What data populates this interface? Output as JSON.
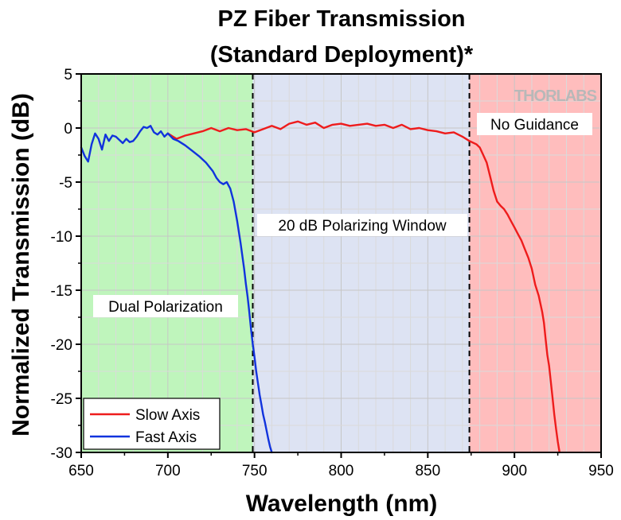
{
  "chart_data": {
    "type": "line",
    "title": [
      "PZ Fiber Transmission",
      "(Standard Deployment)*"
    ],
    "xlabel": "Wavelength (nm)",
    "ylabel": "Normalized Transmission (dB)",
    "xlim": [
      650,
      950
    ],
    "ylim": [
      -30,
      5
    ],
    "xticks": [
      650,
      700,
      750,
      800,
      850,
      900,
      950
    ],
    "yticks": [
      5,
      0,
      -5,
      -10,
      -15,
      -20,
      -25,
      -30
    ],
    "grid": true,
    "legend_position": "bottom-left",
    "regions": [
      {
        "label": "Dual Polarization",
        "x_start": 650,
        "x_end": 749,
        "color": "#bff5bc"
      },
      {
        "label": "20 dB Polarizing Window",
        "x_start": 749,
        "x_end": 874,
        "color": "#dde3f3"
      },
      {
        "label": "No Guidance",
        "x_start": 874,
        "x_end": 950,
        "color": "#ffbdbd"
      }
    ],
    "boundaries": [
      749,
      874
    ],
    "logo": "THORLABS",
    "series": [
      {
        "name": "Slow Axis",
        "color": "#ee1c1c",
        "x": [
          700,
          705,
          710,
          715,
          720,
          725,
          730,
          735,
          740,
          745,
          750,
          755,
          760,
          765,
          770,
          775,
          780,
          785,
          790,
          795,
          800,
          805,
          810,
          815,
          820,
          825,
          830,
          835,
          840,
          845,
          850,
          855,
          860,
          865,
          870,
          874,
          878,
          880,
          882,
          884,
          886,
          888,
          890,
          892,
          894,
          896,
          898,
          900,
          902,
          904,
          906,
          908,
          910,
          912,
          914,
          916,
          917,
          918,
          919,
          920,
          921,
          922,
          923,
          924,
          925,
          926
        ],
        "y": [
          -0.5,
          -1.0,
          -0.7,
          -0.5,
          -0.3,
          0.0,
          -0.3,
          0.0,
          -0.2,
          -0.1,
          -0.4,
          -0.1,
          0.2,
          -0.1,
          0.4,
          0.6,
          0.3,
          0.5,
          0.0,
          0.3,
          0.4,
          0.2,
          0.3,
          0.4,
          0.2,
          0.3,
          0.0,
          0.3,
          -0.1,
          0.0,
          -0.2,
          -0.3,
          -0.5,
          -0.4,
          -0.8,
          -1.2,
          -1.5,
          -1.8,
          -2.5,
          -3.2,
          -4.5,
          -5.8,
          -6.8,
          -7.2,
          -7.5,
          -8.0,
          -8.6,
          -9.2,
          -9.8,
          -10.4,
          -11.2,
          -12.0,
          -13.0,
          -14.5,
          -15.5,
          -17.0,
          -18.0,
          -19.5,
          -21.0,
          -22.0,
          -23.5,
          -25.0,
          -26.5,
          -27.8,
          -29.0,
          -30.0
        ]
      },
      {
        "name": "Fast Axis",
        "color": "#1133dd",
        "x": [
          650,
          652,
          654,
          656,
          658,
          660,
          662,
          664,
          666,
          668,
          670,
          672,
          674,
          676,
          678,
          680,
          682,
          684,
          686,
          688,
          690,
          692,
          694,
          696,
          698,
          700,
          703,
          706,
          710,
          714,
          718,
          722,
          726,
          728,
          730,
          732,
          734,
          736,
          738,
          740,
          742,
          744,
          745,
          746,
          747,
          748,
          749,
          750,
          751,
          752,
          753,
          754,
          755,
          756,
          757,
          758,
          759,
          760
        ],
        "y": [
          -1.8,
          -2.6,
          -3.1,
          -1.5,
          -0.5,
          -1.0,
          -2.0,
          -0.6,
          -1.2,
          -0.7,
          -0.8,
          -1.1,
          -1.4,
          -1.0,
          -1.3,
          -1.2,
          -0.8,
          -0.3,
          0.1,
          0.0,
          0.2,
          -0.4,
          -0.6,
          -0.3,
          -0.8,
          -0.5,
          -1.0,
          -1.2,
          -1.6,
          -2.1,
          -2.6,
          -3.2,
          -4.0,
          -4.6,
          -5.0,
          -5.2,
          -5.0,
          -5.6,
          -6.8,
          -8.6,
          -10.7,
          -13.0,
          -14.4,
          -15.6,
          -17.0,
          -18.6,
          -20.0,
          -21.2,
          -22.5,
          -23.6,
          -24.7,
          -25.6,
          -26.5,
          -27.2,
          -28.0,
          -28.8,
          -29.5,
          -30.0
        ]
      }
    ]
  }
}
